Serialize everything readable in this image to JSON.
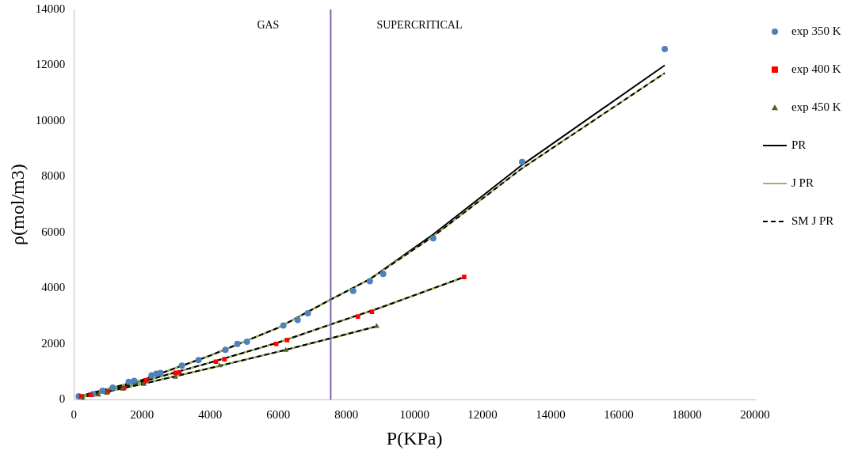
{
  "chart_data": {
    "type": "scatter",
    "xlabel": "P(KPa)",
    "ylabel": "ρ(mol/m3)",
    "xlim": [
      0,
      20000
    ],
    "ylim": [
      0,
      14000
    ],
    "xticks": [
      0,
      2000,
      4000,
      6000,
      8000,
      10000,
      12000,
      14000,
      16000,
      18000,
      20000
    ],
    "yticks": [
      0,
      2000,
      4000,
      6000,
      8000,
      10000,
      12000,
      14000
    ],
    "grid": false,
    "legend": "right",
    "ref_lines": [
      {
        "axis": "x",
        "value": 7540,
        "color": "#8064a2"
      }
    ],
    "annotations": [
      "GAS",
      "SUPERCRITICAL"
    ],
    "series": [
      {
        "name": "exp 350 K",
        "type": "scatter",
        "marker": "circle",
        "color": "#4f81bd",
        "x": [
          140,
          560,
          840,
          1140,
          1610,
          1770,
          2280,
          2420,
          2540,
          3170,
          3660,
          4450,
          4800,
          5080,
          6150,
          6570,
          6870,
          8200,
          8690,
          9080,
          10550,
          13160,
          17350
        ],
        "values": [
          120,
          200,
          320,
          430,
          640,
          670,
          870,
          930,
          960,
          1220,
          1420,
          1790,
          2000,
          2080,
          2660,
          2860,
          3100,
          3900,
          4250,
          4510,
          5790,
          8530,
          12580
        ]
      },
      {
        "name": "exp 400 K",
        "type": "scatter",
        "marker": "square",
        "color": "#ff0000",
        "x": [
          210,
          490,
          1000,
          1470,
          2120,
          2980,
          3100,
          4170,
          4420,
          5940,
          6260,
          8340,
          8750,
          11460
        ],
        "values": [
          120,
          170,
          290,
          410,
          690,
          960,
          980,
          1360,
          1450,
          2000,
          2140,
          2980,
          3150,
          4400
        ]
      },
      {
        "name": "exp 450 K",
        "type": "scatter",
        "marker": "triangle",
        "color": "#4f6228",
        "x": [
          260,
          720,
          960,
          1420,
          2050,
          2980,
          4280,
          6220,
          8890
        ],
        "values": [
          30,
          170,
          230,
          380,
          550,
          810,
          1220,
          1770,
          2630
        ]
      },
      {
        "name": "PR",
        "type": "line",
        "line_style": "solid",
        "color": "#000000",
        "x": [
          150,
          2000,
          4000,
          6000,
          7540,
          8700,
          10550,
          13160,
          17350
        ],
        "values": [
          120,
          700,
          1580,
          2580,
          3590,
          4330,
          5930,
          8420,
          12000
        ]
      },
      {
        "name": "J PR",
        "type": "line",
        "line_style": "solid",
        "color": "#9bbb59",
        "x": [
          150,
          2000,
          4000,
          6000,
          7540,
          8700,
          10550,
          13160,
          17350
        ],
        "values": [
          120,
          700,
          1580,
          2580,
          3590,
          4330,
          5860,
          8300,
          11720
        ]
      },
      {
        "name": "SM J PR",
        "type": "line",
        "line_style": "dashed",
        "color": "#000000",
        "x": [
          150,
          2000,
          4000,
          6000,
          7540,
          8700,
          10550,
          13160,
          17350
        ],
        "values": [
          120,
          700,
          1580,
          2580,
          3590,
          4330,
          5860,
          8300,
          11720
        ]
      },
      {
        "type": "line",
        "line_style": "solid",
        "color": "#000000",
        "x": [
          150,
          2000,
          4000,
          6000,
          7540,
          9000,
          11460
        ],
        "values": [
          80,
          640,
          1330,
          2050,
          2700,
          3300,
          4400
        ]
      },
      {
        "type": "line",
        "line_style": "solid",
        "color": "#9bbb59",
        "x": [
          150,
          2000,
          4000,
          6000,
          7540,
          9000,
          11460
        ],
        "values": [
          80,
          640,
          1330,
          2050,
          2700,
          3300,
          4400
        ]
      },
      {
        "type": "line",
        "line_style": "dashed",
        "color": "#000000",
        "x": [
          150,
          2000,
          4000,
          6000,
          7540,
          9000,
          11460
        ],
        "values": [
          80,
          640,
          1330,
          2050,
          2700,
          3300,
          4400
        ]
      },
      {
        "type": "line",
        "line_style": "solid",
        "color": "#000000",
        "x": [
          150,
          2000,
          4000,
          6000,
          7540,
          8890
        ],
        "values": [
          60,
          560,
          1130,
          1720,
          2200,
          2630
        ]
      },
      {
        "type": "line",
        "line_style": "solid",
        "color": "#9bbb59",
        "x": [
          150,
          2000,
          4000,
          6000,
          7540,
          8890
        ],
        "values": [
          60,
          560,
          1130,
          1720,
          2200,
          2630
        ]
      },
      {
        "type": "line",
        "line_style": "dashed",
        "color": "#000000",
        "x": [
          150,
          2000,
          4000,
          6000,
          7540,
          8890
        ],
        "values": [
          60,
          560,
          1130,
          1720,
          2200,
          2630
        ]
      }
    ]
  }
}
